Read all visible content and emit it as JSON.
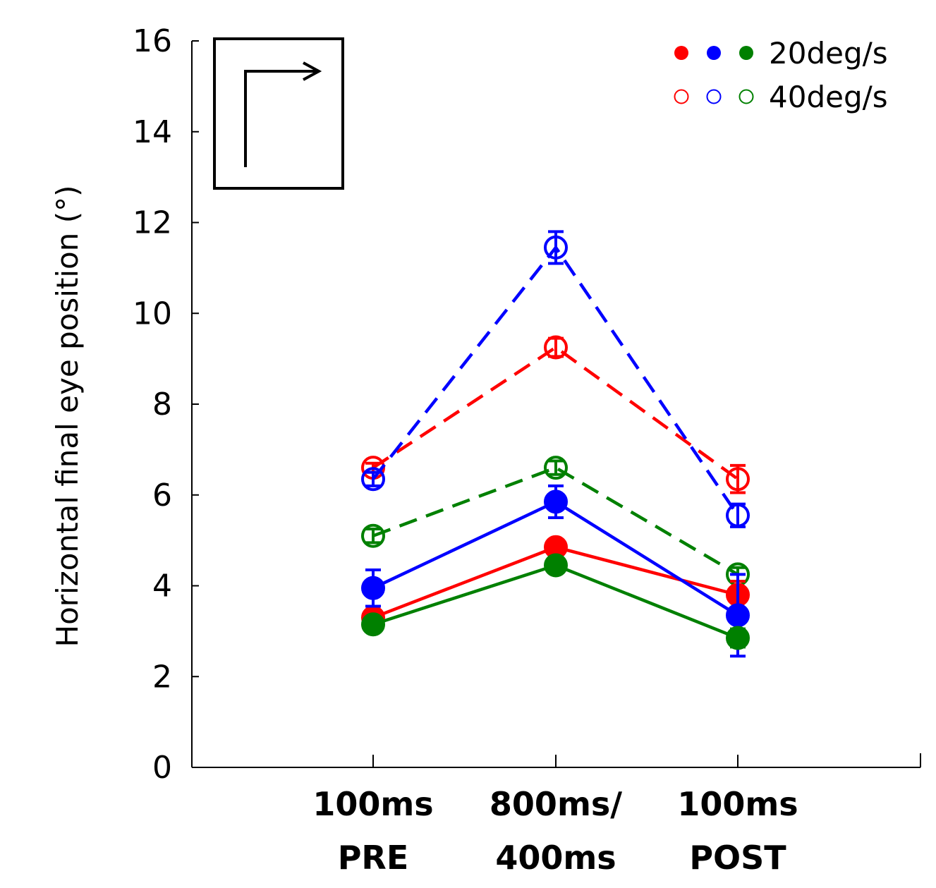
{
  "chart_data": {
    "type": "line",
    "ylabel": "Horizontal final eye position (°)",
    "ylim": [
      0,
      16
    ],
    "yticks": [
      "0",
      "2",
      "4",
      "6",
      "8",
      "10",
      "12",
      "14",
      "16"
    ],
    "categories": [
      [
        "100ms",
        "PRE"
      ],
      [
        "800ms/",
        "400ms"
      ],
      [
        "100ms",
        "POST"
      ]
    ],
    "legend": {
      "position": "top-right",
      "entries": [
        {
          "label": "20deg/s",
          "marker": "filled"
        },
        {
          "label": "40deg/s",
          "marker": "open"
        }
      ],
      "colors": [
        "#ff0000",
        "#0000ff",
        "#008000"
      ]
    },
    "inset_icon": "right-angle-arrow-icon",
    "series": [
      {
        "color": "#ff0000",
        "speed": "20deg/s",
        "style": "solid",
        "marker": "filled",
        "values": [
          3.3,
          4.85,
          3.8
        ],
        "errors": [
          0.15,
          0.1,
          0.3
        ]
      },
      {
        "color": "#0000ff",
        "speed": "20deg/s",
        "style": "solid",
        "marker": "filled",
        "values": [
          3.95,
          5.85,
          3.35
        ],
        "errors": [
          0.4,
          0.35,
          0.9
        ]
      },
      {
        "color": "#008000",
        "speed": "20deg/s",
        "style": "solid",
        "marker": "filled",
        "values": [
          3.15,
          4.45,
          2.85
        ],
        "errors": [
          0.1,
          0.1,
          0.2
        ]
      },
      {
        "color": "#ff0000",
        "speed": "40deg/s",
        "style": "dashed",
        "marker": "open",
        "values": [
          6.6,
          9.25,
          6.35
        ],
        "errors": [
          0.1,
          0.2,
          0.3
        ]
      },
      {
        "color": "#0000ff",
        "speed": "40deg/s",
        "style": "dashed",
        "marker": "open",
        "values": [
          6.35,
          11.45,
          5.55
        ],
        "errors": [
          0.15,
          0.35,
          0.25
        ]
      },
      {
        "color": "#008000",
        "speed": "40deg/s",
        "style": "dashed",
        "marker": "open",
        "values": [
          5.1,
          6.6,
          4.25
        ],
        "errors": [
          0.15,
          0.15,
          0.15
        ]
      }
    ]
  }
}
